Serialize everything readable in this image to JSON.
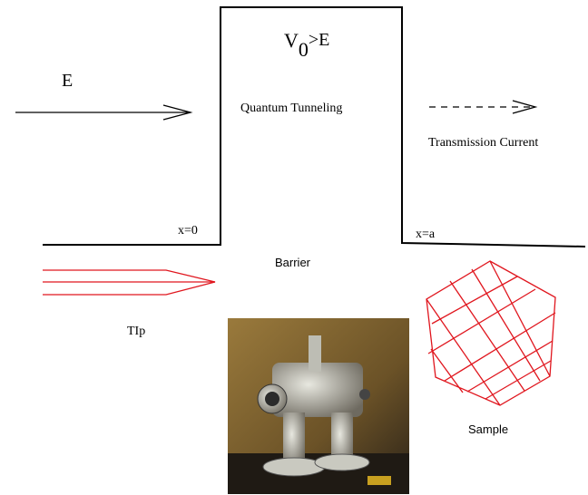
{
  "energy_label": "E",
  "barrier_height": {
    "base": "V",
    "subscript": "0",
    "rest": ">E"
  },
  "tunneling_label": "Quantum Tunneling",
  "transmission_label": "Transmission Current",
  "left_edge_label": "x=0",
  "right_edge_label": "x=a",
  "barrier_label": "Barrier",
  "tip_label": "TIp",
  "sample_label": "Sample"
}
